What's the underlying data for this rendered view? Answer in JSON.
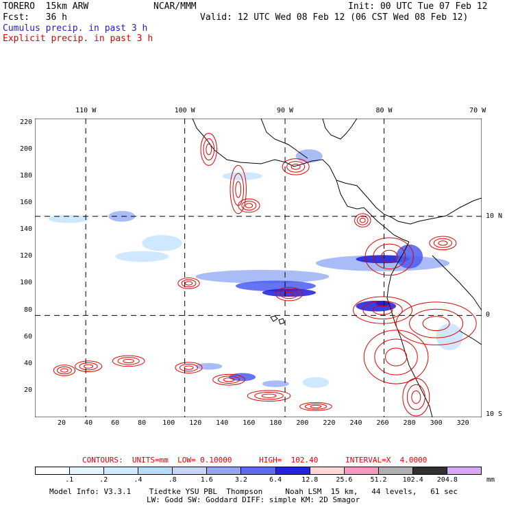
{
  "header": {
    "model": "TORERO  15km ARW",
    "center": "NCAR/MMM",
    "init": "Init: 00 UTC Tue 07 Feb 12",
    "fcst": "Fcst:   36 h",
    "valid": "Valid: 12 UTC Wed 08 Feb 12 (06 CST Wed 08 Feb 12)",
    "field_cumulus": "Cumulus precip. in past 3 h",
    "field_explicit": "Explicit precip. in past 3 h"
  },
  "map": {
    "lon_labels": [
      "110 W",
      "100 W",
      "90 W",
      "80 W",
      "70 W"
    ],
    "lat_labels": [
      "10 N",
      "0",
      "10 S"
    ],
    "x_ticks": [
      "20",
      "40",
      "60",
      "80",
      "100",
      "120",
      "140",
      "160",
      "180",
      "200",
      "220",
      "240",
      "260",
      "280",
      "300",
      "320"
    ],
    "y_ticks": [
      "220",
      "200",
      "180",
      "160",
      "140",
      "120",
      "100",
      "80",
      "60",
      "40",
      "20"
    ],
    "x_range": [
      0,
      334
    ],
    "y_range": [
      0,
      223
    ],
    "grid_x": [
      38,
      112,
      187,
      261
    ],
    "grid_y": [
      76,
      150
    ],
    "colors": {
      "cumulus_light": "#c8e4ff",
      "cumulus_mid": "#9ab0f4",
      "cumulus_strong": "#4a5cf0",
      "cumulus_max": "#1c1cd8",
      "explicit_contour": "#e00000",
      "coast": "#000000"
    },
    "cumulus_cells": [
      {
        "x": 55,
        "y": 150,
        "w": 20,
        "h": 8,
        "level": 2
      },
      {
        "x": 80,
        "y": 130,
        "w": 30,
        "h": 12,
        "level": 1
      },
      {
        "x": 60,
        "y": 120,
        "w": 40,
        "h": 8,
        "level": 1
      },
      {
        "x": 140,
        "y": 180,
        "w": 30,
        "h": 6,
        "level": 1
      },
      {
        "x": 210,
        "y": 115,
        "w": 100,
        "h": 12,
        "level": 2
      },
      {
        "x": 240,
        "y": 118,
        "w": 40,
        "h": 6,
        "level": 4
      },
      {
        "x": 120,
        "y": 105,
        "w": 100,
        "h": 10,
        "level": 2
      },
      {
        "x": 150,
        "y": 98,
        "w": 60,
        "h": 8,
        "level": 3
      },
      {
        "x": 170,
        "y": 93,
        "w": 40,
        "h": 6,
        "level": 4
      },
      {
        "x": 240,
        "y": 83,
        "w": 30,
        "h": 8,
        "level": 4
      },
      {
        "x": 255,
        "y": 85,
        "w": 10,
        "h": 4,
        "level": 5
      },
      {
        "x": 120,
        "y": 38,
        "w": 20,
        "h": 5,
        "level": 2
      },
      {
        "x": 145,
        "y": 30,
        "w": 20,
        "h": 6,
        "level": 3
      },
      {
        "x": 170,
        "y": 25,
        "w": 20,
        "h": 5,
        "level": 2
      },
      {
        "x": 200,
        "y": 26,
        "w": 20,
        "h": 8,
        "level": 1
      },
      {
        "x": 270,
        "y": 120,
        "w": 20,
        "h": 18,
        "level": 3
      },
      {
        "x": 195,
        "y": 195,
        "w": 20,
        "h": 10,
        "level": 2
      },
      {
        "x": 10,
        "y": 148,
        "w": 30,
        "h": 6,
        "level": 1
      },
      {
        "x": 300,
        "y": 60,
        "w": 20,
        "h": 20,
        "level": 1
      }
    ],
    "explicit_contours": [
      {
        "x": 130,
        "y": 200,
        "rx": 6,
        "ry": 12
      },
      {
        "x": 152,
        "y": 170,
        "rx": 6,
        "ry": 18
      },
      {
        "x": 195,
        "y": 187,
        "rx": 10,
        "ry": 6
      },
      {
        "x": 160,
        "y": 158,
        "rx": 8,
        "ry": 5
      },
      {
        "x": 265,
        "y": 120,
        "rx": 18,
        "ry": 14
      },
      {
        "x": 260,
        "y": 80,
        "rx": 22,
        "ry": 10
      },
      {
        "x": 270,
        "y": 45,
        "rx": 24,
        "ry": 20
      },
      {
        "x": 285,
        "y": 15,
        "rx": 10,
        "ry": 14
      },
      {
        "x": 300,
        "y": 70,
        "rx": 30,
        "ry": 16
      },
      {
        "x": 22,
        "y": 35,
        "rx": 8,
        "ry": 4
      },
      {
        "x": 40,
        "y": 38,
        "rx": 10,
        "ry": 4
      },
      {
        "x": 70,
        "y": 42,
        "rx": 12,
        "ry": 4
      },
      {
        "x": 115,
        "y": 37,
        "rx": 10,
        "ry": 4
      },
      {
        "x": 145,
        "y": 28,
        "rx": 12,
        "ry": 4
      },
      {
        "x": 175,
        "y": 16,
        "rx": 16,
        "ry": 4
      },
      {
        "x": 210,
        "y": 8,
        "rx": 12,
        "ry": 3
      },
      {
        "x": 115,
        "y": 100,
        "rx": 8,
        "ry": 4
      },
      {
        "x": 190,
        "y": 92,
        "rx": 10,
        "ry": 5
      },
      {
        "x": 245,
        "y": 147,
        "rx": 6,
        "ry": 5
      },
      {
        "x": 305,
        "y": 130,
        "rx": 10,
        "ry": 5
      }
    ]
  },
  "contour_info": {
    "label": "CONTOURS:  UNITS=mm  LOW= 0.10000      HIGH=  102.40      INTERVAL=X  4.0000"
  },
  "colorbar": {
    "labels": [
      ".1",
      ".2",
      ".4",
      ".8",
      "1.6",
      "3.2",
      "6.4",
      "12.8",
      "25.6",
      "51.2",
      "102.4",
      "204.8"
    ],
    "unit": "mm",
    "colors": [
      "#ffffff",
      "#e6f4ff",
      "#cfe9ff",
      "#b6dcfc",
      "#c6d4f7",
      "#96a6ee",
      "#5e6aee",
      "#2424dc",
      "#fdd6d6",
      "#f39ac0",
      "#b0b0b0",
      "#303030",
      "#d8a8f4"
    ]
  },
  "footer": {
    "line1": "Model Info: V3.3.1    Tiedtke YSU PBL  Thompson     Noah LSM  15 km,   44 levels,   61 sec",
    "line2": "LW: Godd SW: Goddard DIFF: simple KM: 2D Smagor"
  }
}
